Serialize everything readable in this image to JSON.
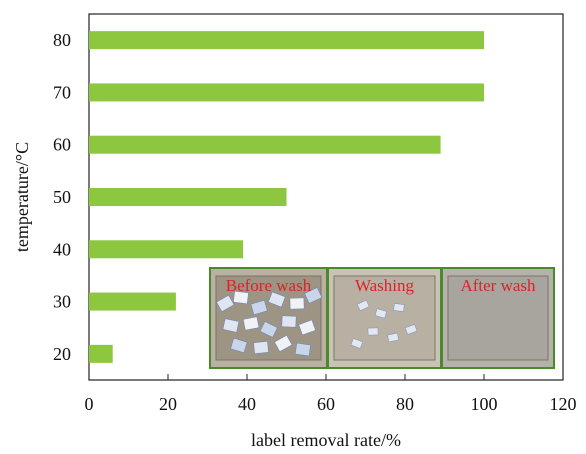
{
  "chart_data": {
    "type": "bar",
    "orientation": "horizontal",
    "title": "",
    "xlabel": "label removal rate/%",
    "ylabel": "temperature/°C",
    "categories": [
      "20",
      "30",
      "40",
      "50",
      "60",
      "70",
      "80"
    ],
    "values": [
      6,
      22,
      39,
      50,
      89,
      100,
      100
    ],
    "xlim": [
      0,
      120
    ],
    "xticks": [
      "0",
      "20",
      "40",
      "60",
      "80",
      "100",
      "120"
    ],
    "bar_color": "#8dc63f",
    "grid": false,
    "legend": "none"
  },
  "inset": {
    "panels": [
      {
        "label": "Before wash"
      },
      {
        "label": "Washing"
      },
      {
        "label": "After wash"
      }
    ],
    "label_color": "#e0202a",
    "border_color": "#4a8a2a"
  }
}
